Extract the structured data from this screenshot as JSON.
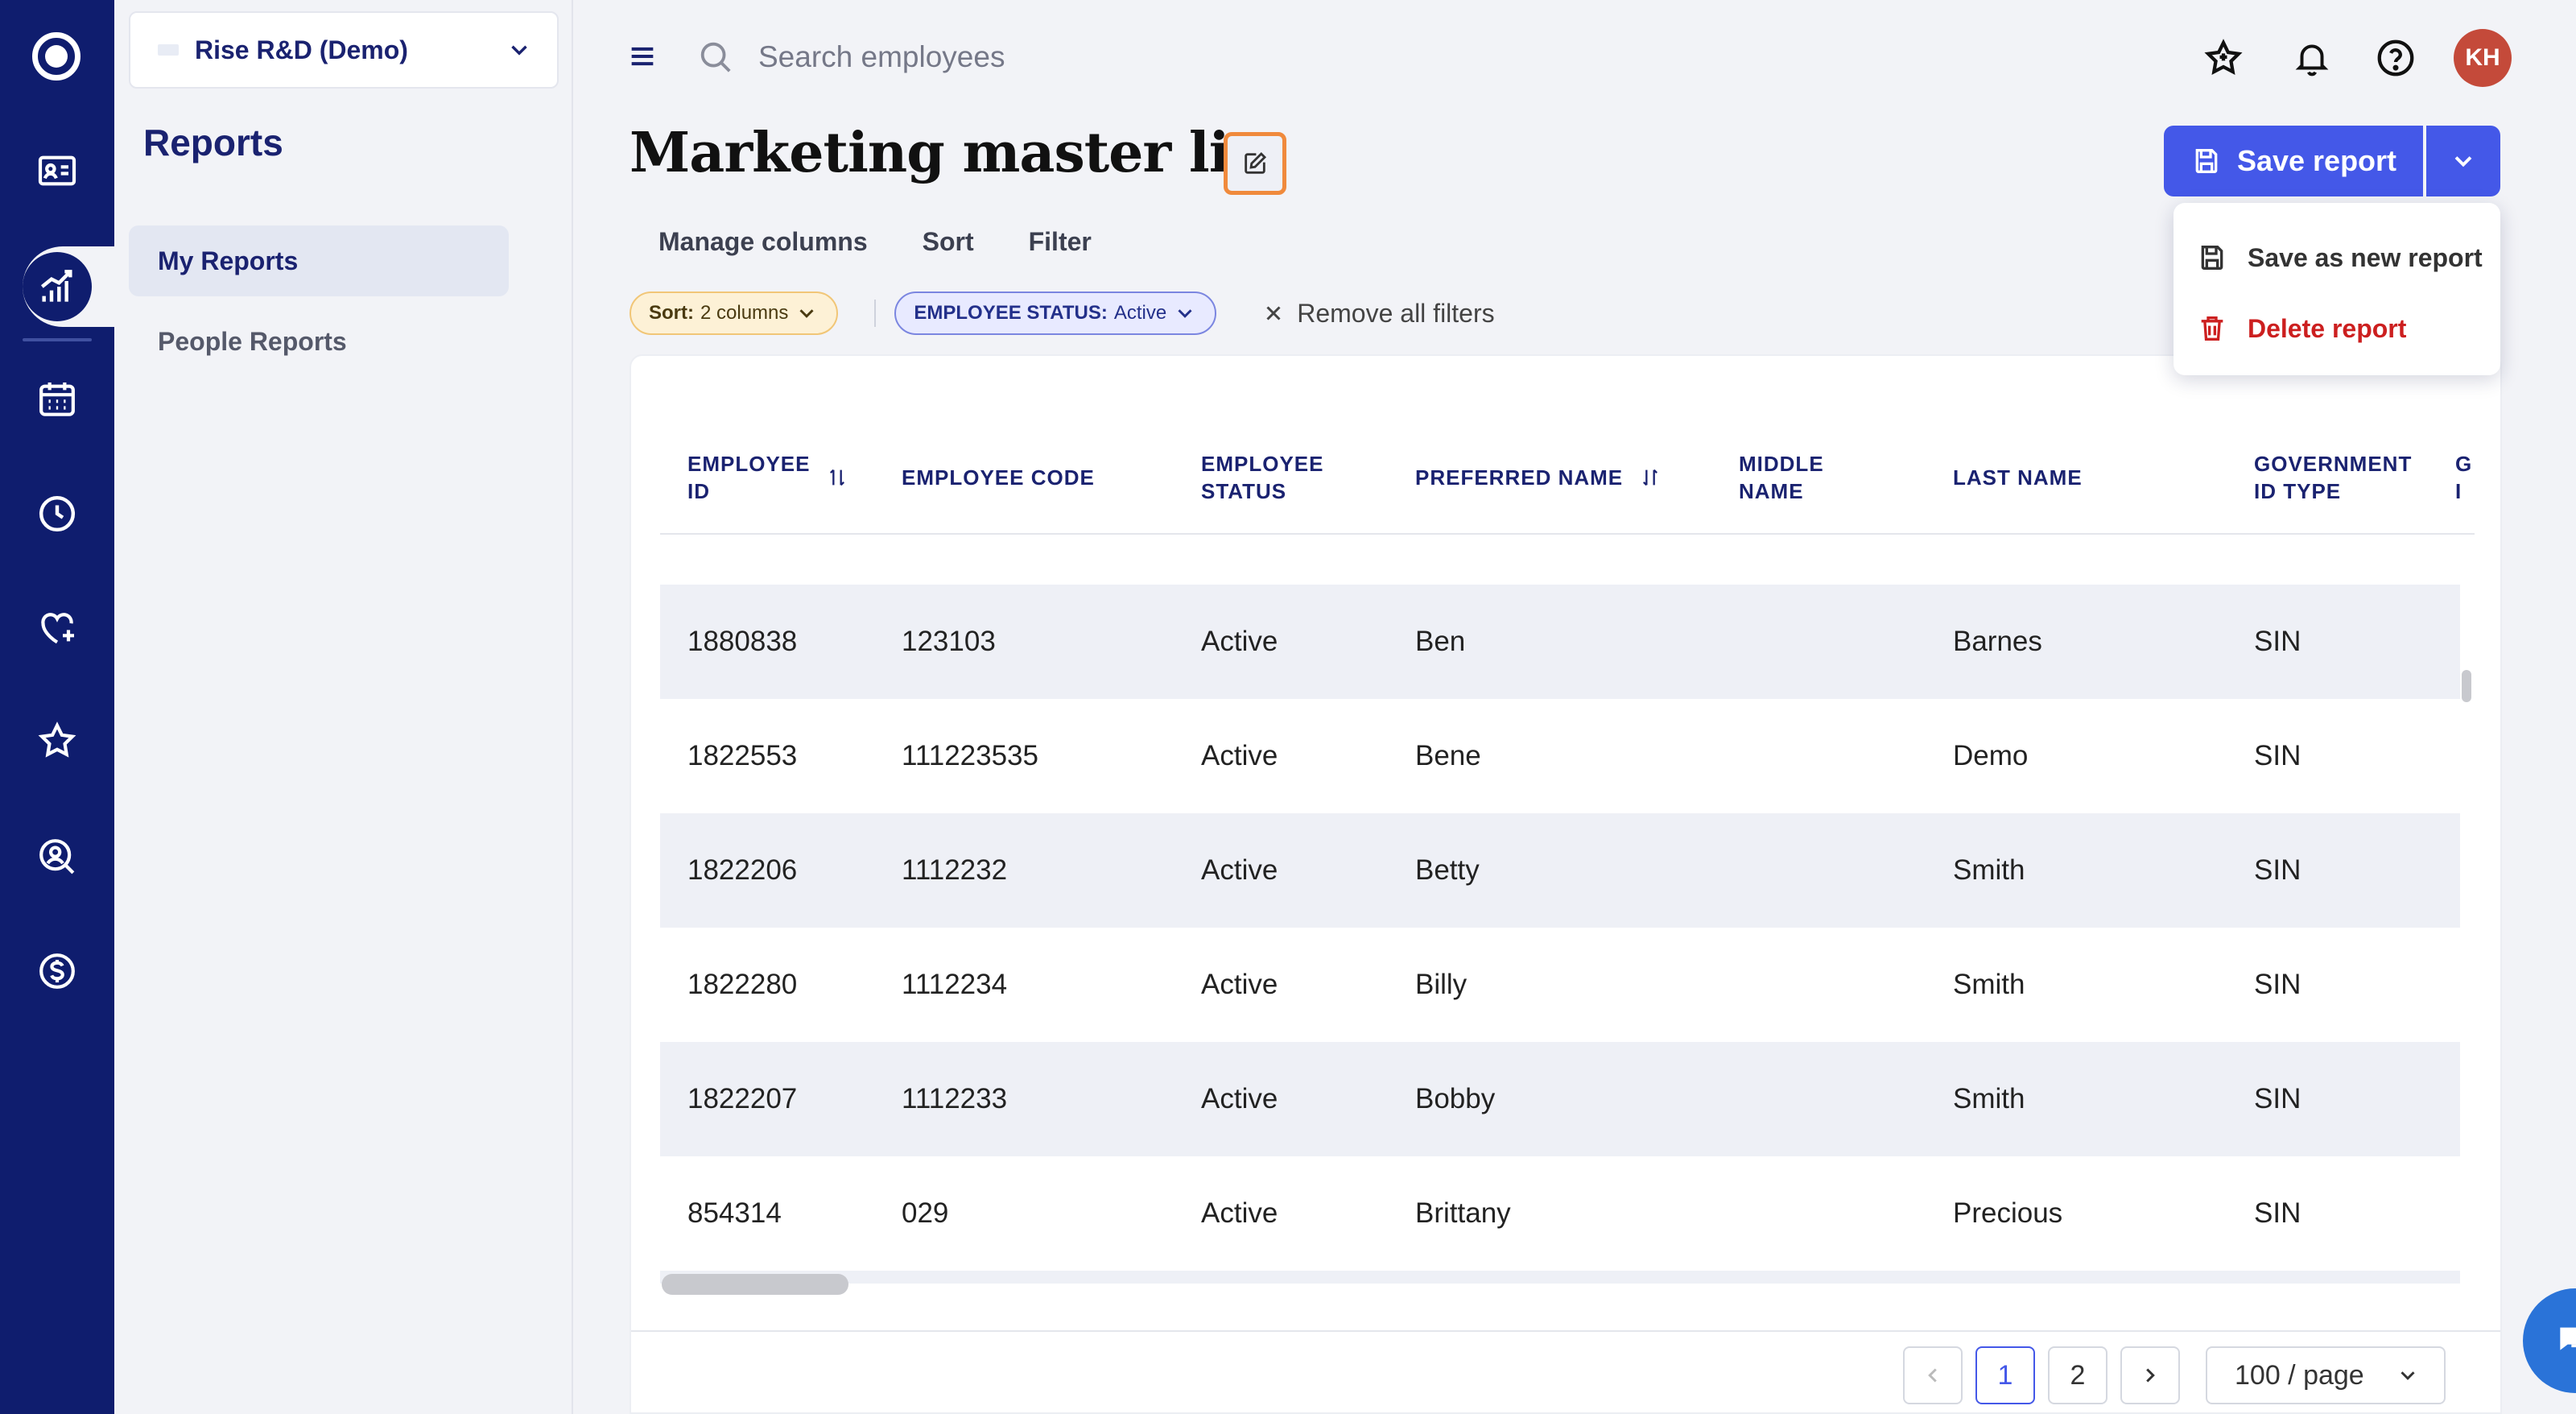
{
  "org": {
    "name": "Rise R&D (Demo)"
  },
  "subnav": {
    "title": "Reports",
    "items": [
      {
        "label": "My Reports",
        "active": true
      },
      {
        "label": "People Reports",
        "active": false
      }
    ]
  },
  "search": {
    "placeholder": "Search employees"
  },
  "user": {
    "initials": "KH"
  },
  "page": {
    "title": "Marketing master list",
    "save_label": "Save report",
    "tabs": [
      "Manage columns",
      "Sort",
      "Filter"
    ]
  },
  "filters": {
    "sort_key": "Sort:",
    "sort_value": "2 columns",
    "status_key": "EMPLOYEE STATUS:",
    "status_value": "Active",
    "remove_all": "Remove all filters"
  },
  "menu": {
    "save_as_new": "Save as new report",
    "delete": "Delete report"
  },
  "table": {
    "headers": {
      "employee_id_1": "EMPLOYEE",
      "employee_id_2": "ID",
      "employee_code": "EMPLOYEE CODE",
      "employee_status_1": "EMPLOYEE",
      "employee_status_2": "STATUS",
      "preferred_name": "PREFERRED NAME",
      "middle_name_1": "MIDDLE",
      "middle_name_2": "NAME",
      "last_name": "LAST NAME",
      "gov_id_type_1": "GOVERNMENT",
      "gov_id_type_2": "ID TYPE",
      "next_col_1": "G",
      "next_col_2": "I"
    },
    "rows": [
      {
        "id": "1880838",
        "code": "123103",
        "status": "Active",
        "preferred": "Ben",
        "middle": "",
        "last": "Barnes",
        "gov": "SIN"
      },
      {
        "id": "1822553",
        "code": "111223535",
        "status": "Active",
        "preferred": "Bene",
        "middle": "",
        "last": "Demo",
        "gov": "SIN"
      },
      {
        "id": "1822206",
        "code": "1112232",
        "status": "Active",
        "preferred": "Betty",
        "middle": "",
        "last": "Smith",
        "gov": "SIN"
      },
      {
        "id": "1822280",
        "code": "1112234",
        "status": "Active",
        "preferred": "Billy",
        "middle": "",
        "last": "Smith",
        "gov": "SIN"
      },
      {
        "id": "1822207",
        "code": "1112233",
        "status": "Active",
        "preferred": "Bobby",
        "middle": "",
        "last": "Smith",
        "gov": "SIN"
      },
      {
        "id": "854314",
        "code": "029",
        "status": "Active",
        "preferred": "Brittany",
        "middle": "",
        "last": "Precious",
        "gov": "SIN"
      }
    ]
  },
  "pagination": {
    "pages": [
      "1",
      "2"
    ],
    "current": "1",
    "page_size": "100 / page"
  },
  "colors": {
    "rail": "#0f1d6e",
    "primary": "#4458e8",
    "danger": "#cc1f1f",
    "edit_outline": "#f08a3c"
  },
  "icons": {
    "rail": [
      "logo-icon",
      "id-card-icon",
      "reports-icon",
      "calendar-icon",
      "clock-icon",
      "heart-plus-icon",
      "star-icon",
      "person-search-icon",
      "dollar-icon"
    ],
    "top": [
      "menu-icon",
      "search-icon",
      "star-outline-icon",
      "bell-icon",
      "help-icon"
    ]
  }
}
